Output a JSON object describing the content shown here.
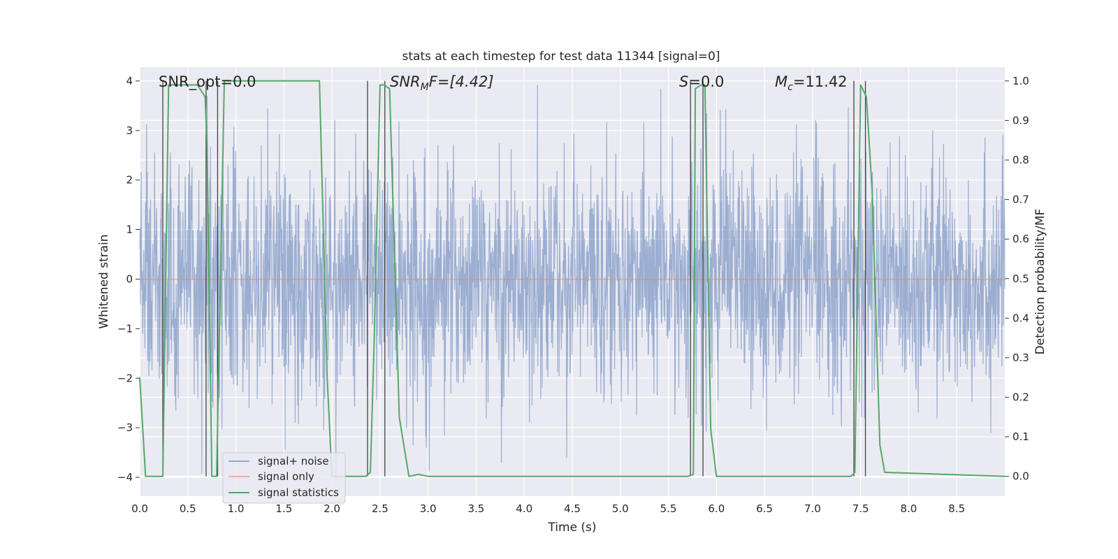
{
  "chart_data": {
    "type": "line",
    "title": "stats at each timestep for test data 11344 [signal=0]",
    "xlabel": "Time (s)",
    "ylabel": "Whitened strain",
    "ylabel_right": "Detection probability/MF",
    "xlim": [
      0.0,
      9.0
    ],
    "ylim": [
      -4.38,
      4.28
    ],
    "ylim_right": [
      -0.05,
      1.035
    ],
    "x_ticks": [
      "0.0",
      "0.5",
      "1.0",
      "1.5",
      "2.0",
      "2.5",
      "3.0",
      "3.5",
      "4.0",
      "4.5",
      "5.0",
      "5.5",
      "6.0",
      "6.5",
      "7.0",
      "7.5",
      "8.0",
      "8.5"
    ],
    "y_ticks": [
      "4",
      "3",
      "2",
      "1",
      "0",
      "−1",
      "−2",
      "−3",
      "−4"
    ],
    "y_ticks_right": [
      "1.0",
      "0.9",
      "0.8",
      "0.7",
      "0.6",
      "0.5",
      "0.4",
      "0.3",
      "0.2",
      "0.1",
      "0.0"
    ],
    "grid": true,
    "legend_position": "lower-left",
    "legend": [
      "signal+ noise",
      "signal only",
      "signal statistics"
    ],
    "annotations": {
      "snr_opt": "SNR_opt=0.0",
      "snr_mf_name": "SNR",
      "snr_mf_sub": "M",
      "snr_mf_rest": "F=[4.42]",
      "s_name": "S",
      "s_rest": "=0.0",
      "mc_name": "M",
      "mc_sub": "c",
      "mc_rest": "=11.42"
    },
    "series": [
      {
        "name": "signal+ noise",
        "color": "#4c72b0",
        "envelope": "noise, roughly within ±2.5 with spikes to about +3.9 and −4.0 across 0–9 s"
      },
      {
        "name": "signal only",
        "color": "#dd8452",
        "x": [
          0,
          9
        ],
        "y": [
          0,
          0
        ]
      },
      {
        "name": "signal statistics",
        "color": "#55a868",
        "x": [
          0.0,
          0.06,
          0.2,
          0.24,
          0.3,
          0.6,
          0.68,
          0.7,
          0.75,
          0.8,
          0.88,
          1.0,
          1.87,
          1.95,
          2.0,
          2.35,
          2.4,
          2.44,
          2.5,
          2.54,
          2.6,
          2.7,
          2.8,
          2.9,
          3.0,
          5.7,
          5.76,
          5.78,
          5.84,
          5.88,
          5.94,
          6.0,
          7.2,
          7.4,
          7.44,
          7.5,
          7.56,
          7.62,
          7.7,
          7.75,
          9.0
        ],
        "y": [
          0.25,
          0.0,
          0.0,
          0.0,
          0.99,
          0.99,
          0.96,
          0.84,
          0.0,
          0.0,
          1.0,
          1.0,
          1.0,
          0.25,
          0.0,
          0.0,
          0.01,
          0.35,
          0.99,
          0.99,
          0.98,
          0.15,
          0.0,
          0.005,
          0.0,
          0.0,
          0.005,
          0.98,
          0.99,
          0.99,
          0.12,
          0.0,
          0.0,
          0.0,
          0.01,
          0.99,
          0.96,
          0.72,
          0.08,
          0.01,
          0.0
        ]
      }
    ],
    "vertical_markers_s": [
      0.24,
      0.69,
      0.81,
      2.37,
      2.55,
      5.73,
      5.86,
      7.43,
      7.55
    ]
  }
}
